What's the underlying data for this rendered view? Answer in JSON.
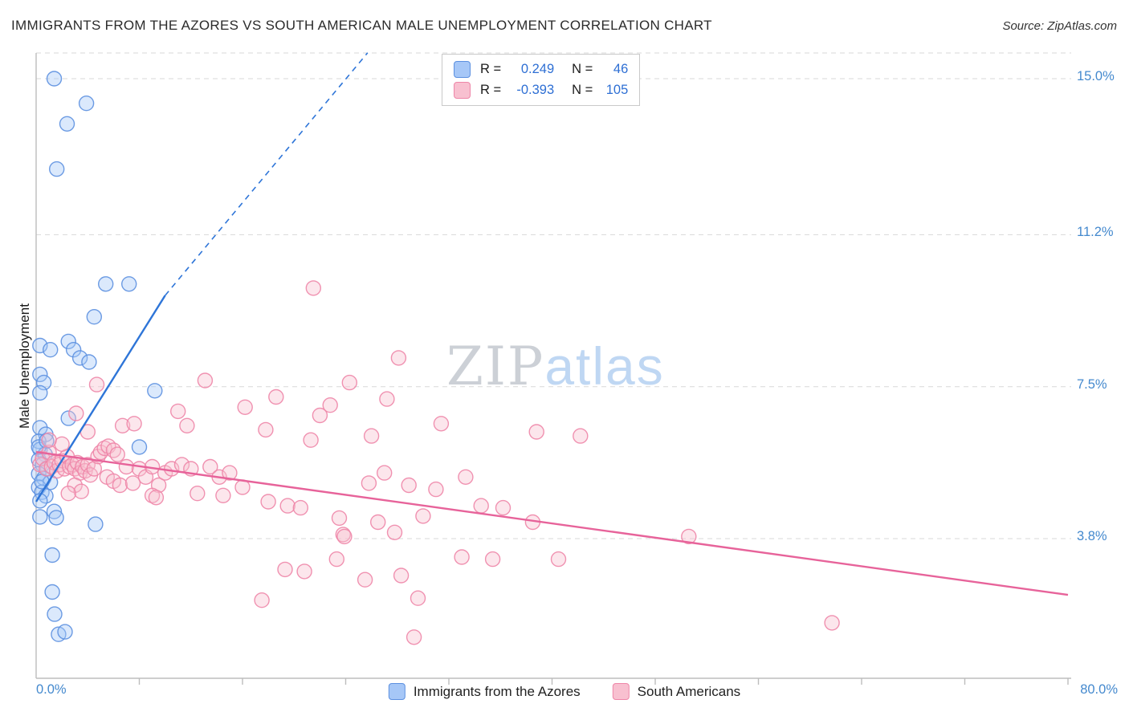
{
  "header": {
    "title": "IMMIGRANTS FROM THE AZORES VS SOUTH AMERICAN MALE UNEMPLOYMENT CORRELATION CHART",
    "source": "Source: ZipAtlas.com"
  },
  "watermark": {
    "zip": "ZIP",
    "atlas": "atlas"
  },
  "legend_box": {
    "rows": [
      {
        "r_label": "R =",
        "r_value": "0.249",
        "n_label": "N =",
        "n_value": "46"
      },
      {
        "r_label": "R =",
        "r_value": "-0.393",
        "n_label": "N =",
        "n_value": "105"
      }
    ]
  },
  "chart_data": {
    "type": "scatter",
    "title": "IMMIGRANTS FROM THE AZORES VS SOUTH AMERICAN MALE UNEMPLOYMENT CORRELATION CHART",
    "xlabel": "",
    "ylabel": "Male Unemployment",
    "x_axis": {
      "min": 0,
      "max": 80,
      "left_label": "0.0%",
      "right_label": "80.0%"
    },
    "y_axis": {
      "min": 0,
      "max": 15.65,
      "ticks": [
        {
          "label": "15.0%",
          "value": 15.0
        },
        {
          "label": "11.2%",
          "value": 11.2
        },
        {
          "label": "7.5%",
          "value": 7.5
        },
        {
          "label": "3.8%",
          "value": 3.8
        }
      ]
    },
    "grid": true,
    "legend_position": "bottom-center",
    "series": [
      {
        "key": "azores",
        "name": "Immigrants from the Azores",
        "R": 0.249,
        "N": 46,
        "fill": "#A6C7F7",
        "stroke": "#5C90E0",
        "line_color": "#2E75D8",
        "trend_solid": [
          [
            0,
            4.7
          ],
          [
            10,
            9.72
          ]
        ],
        "trend_dashed": [
          [
            10,
            9.72
          ],
          [
            25.7,
            15.63
          ]
        ],
        "points": [
          [
            1.4,
            15.0
          ],
          [
            3.9,
            14.4
          ],
          [
            2.4,
            13.9
          ],
          [
            1.6,
            12.8
          ],
          [
            5.4,
            10.0
          ],
          [
            7.2,
            10.0
          ],
          [
            4.5,
            9.2
          ],
          [
            0.3,
            8.5
          ],
          [
            1.1,
            8.4
          ],
          [
            2.5,
            8.6
          ],
          [
            2.9,
            8.4
          ],
          [
            3.4,
            8.2
          ],
          [
            4.1,
            8.1
          ],
          [
            0.3,
            7.8
          ],
          [
            0.6,
            7.6
          ],
          [
            0.3,
            7.35
          ],
          [
            9.2,
            7.4
          ],
          [
            2.5,
            6.73
          ],
          [
            0.3,
            6.5
          ],
          [
            0.75,
            6.34
          ],
          [
            0.2,
            6.17
          ],
          [
            8.0,
            6.03
          ],
          [
            0.3,
            5.97
          ],
          [
            0.7,
            5.85
          ],
          [
            0.2,
            5.72
          ],
          [
            0.5,
            5.6
          ],
          [
            0.9,
            5.5
          ],
          [
            0.2,
            5.38
          ],
          [
            0.6,
            5.27
          ],
          [
            1.1,
            5.17
          ],
          [
            0.2,
            5.05
          ],
          [
            0.44,
            4.93
          ],
          [
            0.75,
            4.84
          ],
          [
            0.3,
            4.72
          ],
          [
            1.4,
            4.46
          ],
          [
            1.56,
            4.31
          ],
          [
            0.3,
            4.33
          ],
          [
            4.6,
            4.15
          ],
          [
            1.25,
            3.4
          ],
          [
            1.25,
            2.5
          ],
          [
            1.43,
            1.96
          ],
          [
            1.74,
            1.47
          ],
          [
            2.24,
            1.53
          ],
          [
            0.2,
            6.03
          ],
          [
            0.44,
            5.19
          ],
          [
            0.8,
            6.18
          ]
        ]
      },
      {
        "key": "south-americans",
        "name": "South Americans",
        "R": -0.393,
        "N": 105,
        "fill": "#F8C0D0",
        "stroke": "#EE86A8",
        "line_color": "#E7639A",
        "trend_solid": [
          [
            0,
            5.91
          ],
          [
            80,
            2.43
          ]
        ],
        "points": [
          [
            21.5,
            9.9
          ],
          [
            28.1,
            8.2
          ],
          [
            13.1,
            7.65
          ],
          [
            4.7,
            7.55
          ],
          [
            24.3,
            7.6
          ],
          [
            18.6,
            7.25
          ],
          [
            27.2,
            7.2
          ],
          [
            22.8,
            7.05
          ],
          [
            11.0,
            6.9
          ],
          [
            22.0,
            6.8
          ],
          [
            16.2,
            7.0
          ],
          [
            31.4,
            6.6
          ],
          [
            38.8,
            6.4
          ],
          [
            42.2,
            6.3
          ],
          [
            21.3,
            6.2
          ],
          [
            17.8,
            6.45
          ],
          [
            50.6,
            3.85
          ],
          [
            61.7,
            1.75
          ],
          [
            40.5,
            3.3
          ],
          [
            19.3,
            3.05
          ],
          [
            29.3,
            1.4
          ],
          [
            29.6,
            2.35
          ],
          [
            17.5,
            2.3
          ],
          [
            20.8,
            3.0
          ],
          [
            23.3,
            3.3
          ],
          [
            25.5,
            2.8
          ],
          [
            28.3,
            2.9
          ],
          [
            18.0,
            4.7
          ],
          [
            19.5,
            4.6
          ],
          [
            20.5,
            4.55
          ],
          [
            23.5,
            4.3
          ],
          [
            23.8,
            3.9
          ],
          [
            23.9,
            3.85
          ],
          [
            26.5,
            4.2
          ],
          [
            27.8,
            3.95
          ],
          [
            30.0,
            4.35
          ],
          [
            34.5,
            4.6
          ],
          [
            36.2,
            4.55
          ],
          [
            38.5,
            4.2
          ],
          [
            27.0,
            5.4
          ],
          [
            25.8,
            5.15
          ],
          [
            28.9,
            5.1
          ],
          [
            31.0,
            5.0
          ],
          [
            33.3,
            5.3
          ],
          [
            0.3,
            5.6
          ],
          [
            0.5,
            5.75
          ],
          [
            0.8,
            5.5
          ],
          [
            1.0,
            5.9
          ],
          [
            1.2,
            5.55
          ],
          [
            1.4,
            5.65
          ],
          [
            1.6,
            5.45
          ],
          [
            1.8,
            5.6
          ],
          [
            2.0,
            5.7
          ],
          [
            2.2,
            5.5
          ],
          [
            2.4,
            5.8
          ],
          [
            2.6,
            5.55
          ],
          [
            2.8,
            5.6
          ],
          [
            3.0,
            5.5
          ],
          [
            3.2,
            5.65
          ],
          [
            3.4,
            5.4
          ],
          [
            3.6,
            5.55
          ],
          [
            3.8,
            5.45
          ],
          [
            4.0,
            5.6
          ],
          [
            4.2,
            5.35
          ],
          [
            4.5,
            5.5
          ],
          [
            4.8,
            5.8
          ],
          [
            5.0,
            5.9
          ],
          [
            5.3,
            6.0
          ],
          [
            5.6,
            6.05
          ],
          [
            6.0,
            5.95
          ],
          [
            6.3,
            5.85
          ],
          [
            6.7,
            6.55
          ],
          [
            7.6,
            6.6
          ],
          [
            3.1,
            6.85
          ],
          [
            4.0,
            6.4
          ],
          [
            2.0,
            6.1
          ],
          [
            1.0,
            6.2
          ],
          [
            5.5,
            5.3
          ],
          [
            6.0,
            5.2
          ],
          [
            6.5,
            5.1
          ],
          [
            7.0,
            5.55
          ],
          [
            7.5,
            5.15
          ],
          [
            8.0,
            5.5
          ],
          [
            8.5,
            5.3
          ],
          [
            9.0,
            5.55
          ],
          [
            9.5,
            5.1
          ],
          [
            10.0,
            5.4
          ],
          [
            10.5,
            5.5
          ],
          [
            11.3,
            5.6
          ],
          [
            12.0,
            5.5
          ],
          [
            3.0,
            5.1
          ],
          [
            3.5,
            4.95
          ],
          [
            2.5,
            4.9
          ],
          [
            9.0,
            4.85
          ],
          [
            9.3,
            4.8
          ],
          [
            13.5,
            5.55
          ],
          [
            14.2,
            5.3
          ],
          [
            15.0,
            5.4
          ],
          [
            16.0,
            5.05
          ],
          [
            14.5,
            4.85
          ],
          [
            12.5,
            4.9
          ],
          [
            11.7,
            6.55
          ],
          [
            35.4,
            3.3
          ],
          [
            33.0,
            3.35
          ],
          [
            26.0,
            6.3
          ]
        ]
      }
    ]
  }
}
